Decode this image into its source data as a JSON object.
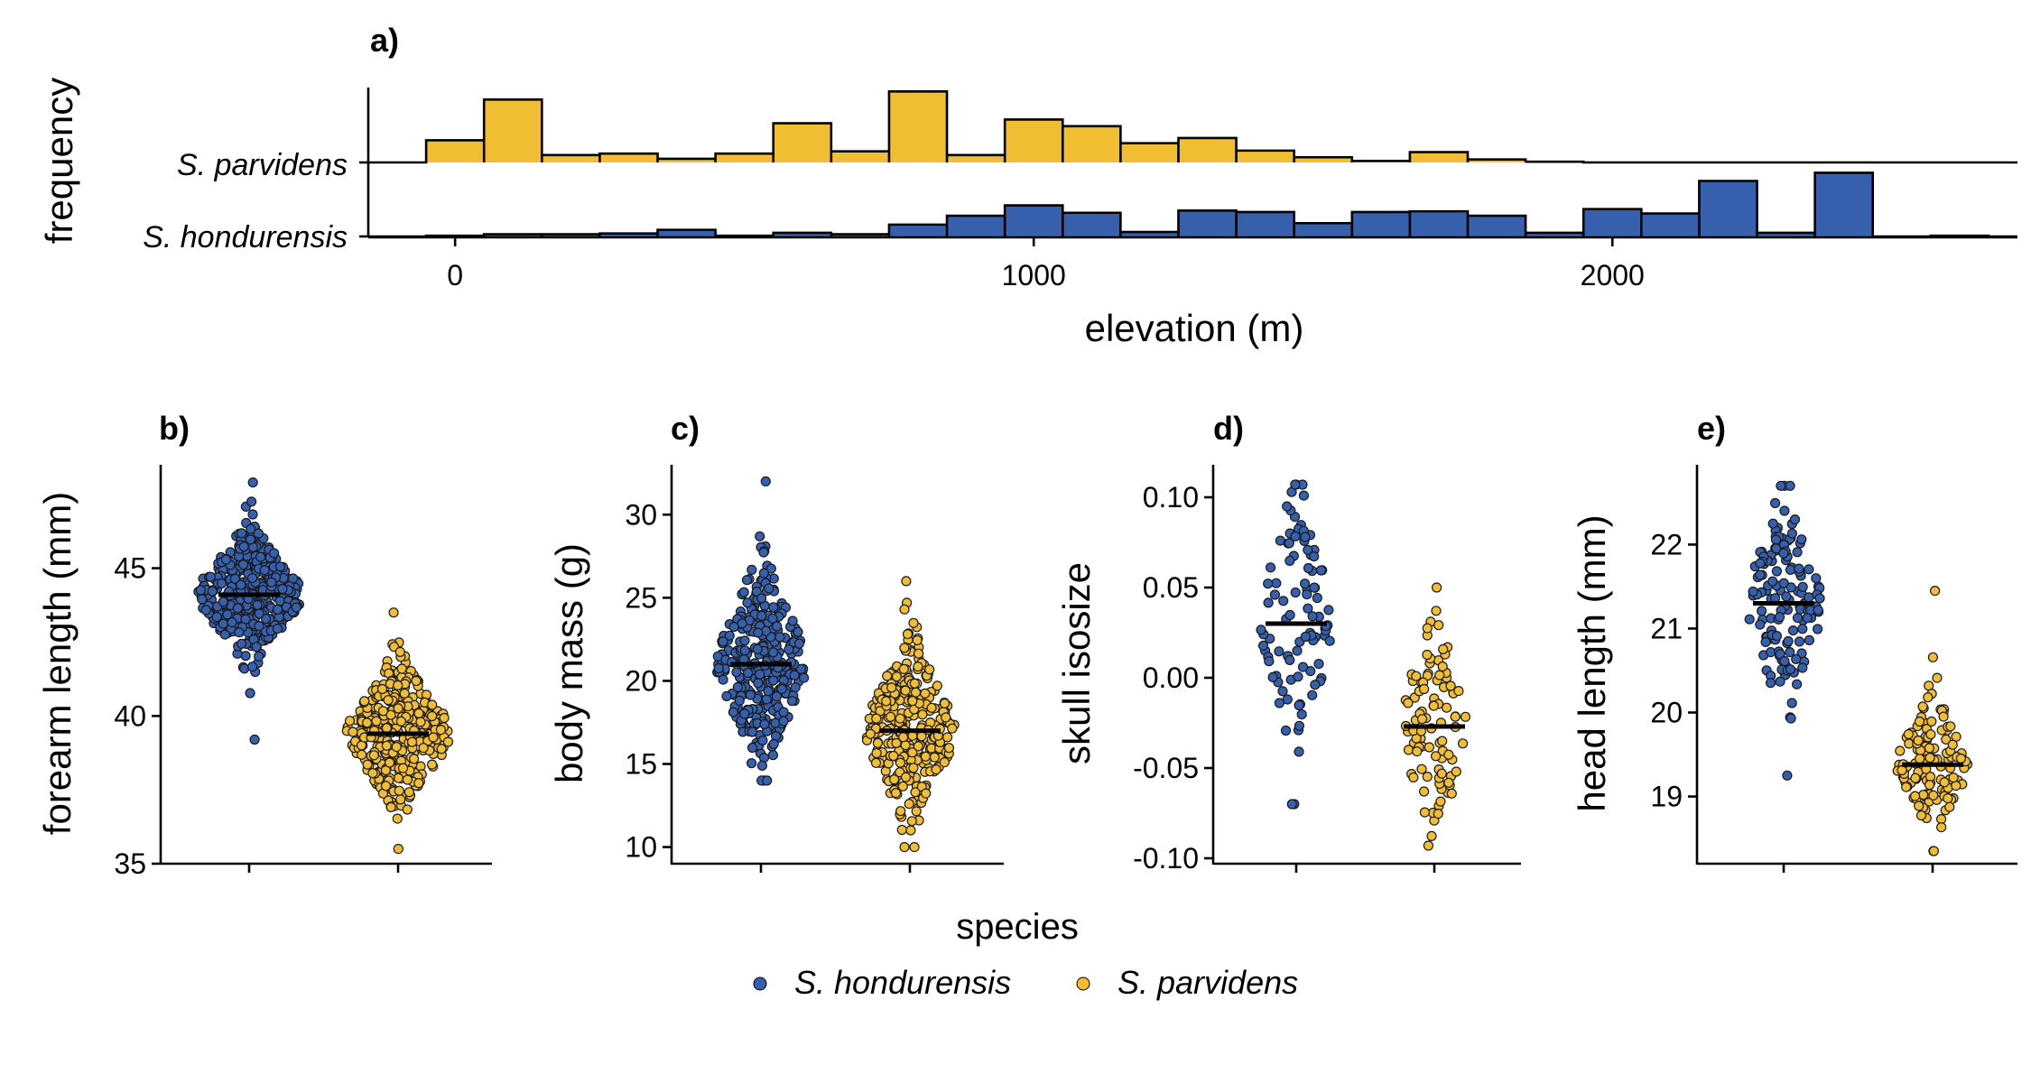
{
  "colors": {
    "hondurensis": "#3660ad",
    "parvidens": "#f0bd33",
    "axis": "#000000"
  },
  "chart_data": [
    {
      "id": "a",
      "type": "histogram",
      "panel_label": "a)",
      "xlabel": "elevation (m)",
      "ylabel": "frequency",
      "xlim": [
        -150,
        2700
      ],
      "xticks": [
        0,
        1000,
        2000
      ],
      "categories": [
        "S. parvidens",
        "S. hondurensis"
      ],
      "bin_width": 100,
      "bin_starts": [
        -50,
        50,
        150,
        250,
        350,
        450,
        550,
        650,
        750,
        850,
        950,
        1050,
        1150,
        1250,
        1350,
        1450,
        1550,
        1650,
        1750,
        1850,
        1950,
        2050,
        2150,
        2250,
        2350,
        2450,
        2550
      ],
      "series": [
        {
          "name": "S. parvidens",
          "values": [
            0.3,
            0.85,
            0.1,
            0.12,
            0.05,
            0.12,
            0.53,
            0.15,
            0.96,
            0.1,
            0.58,
            0.49,
            0.26,
            0.33,
            0.16,
            0.07,
            0.02,
            0.14,
            0.04,
            0.01,
            0,
            0,
            0,
            0,
            0,
            0,
            0
          ]
        },
        {
          "name": "S. hondurensis",
          "values": [
            0.01,
            0.03,
            0.03,
            0.04,
            0.09,
            0.01,
            0.05,
            0.03,
            0.16,
            0.28,
            0.42,
            0.32,
            0.06,
            0.35,
            0.33,
            0.18,
            0.33,
            0.34,
            0.28,
            0.05,
            0.37,
            0.31,
            0.75,
            0.05,
            0.86,
            0,
            0.01
          ]
        }
      ]
    },
    {
      "id": "b",
      "type": "scatter",
      "panel_label": "b)",
      "ylabel": "forearm length (mm)",
      "ylim": [
        35,
        48.5
      ],
      "yticks": [
        35,
        40,
        45
      ],
      "categories": [
        "S. hondurensis",
        "S. parvidens"
      ],
      "series": [
        {
          "name": "S. hondurensis",
          "n": 380,
          "median": 44.1,
          "min": 39.2,
          "max": 47.9,
          "sd": 1.05
        },
        {
          "name": "S. parvidens",
          "n": 360,
          "median": 39.4,
          "min": 35.5,
          "max": 43.5,
          "sd": 1.15
        }
      ]
    },
    {
      "id": "c",
      "type": "scatter",
      "panel_label": "c)",
      "ylabel": "body mass (g)",
      "ylim": [
        9,
        33
      ],
      "yticks": [
        10,
        15,
        20,
        25,
        30
      ],
      "categories": [
        "S. hondurensis",
        "S. parvidens"
      ],
      "series": [
        {
          "name": "S. hondurensis",
          "n": 330,
          "median": 21,
          "min": 14,
          "max": 32,
          "sd": 2.9
        },
        {
          "name": "S. parvidens",
          "n": 320,
          "median": 17,
          "min": 10,
          "max": 26,
          "sd": 2.6
        }
      ]
    },
    {
      "id": "d",
      "type": "scatter",
      "panel_label": "d)",
      "ylabel": "skull isosize",
      "ylim": [
        -0.103,
        0.118
      ],
      "yticks": [
        -0.1,
        -0.05,
        0,
        0.05,
        0.1
      ],
      "ytick_labels": [
        "-0.10",
        "-0.05",
        "0.00",
        "0.05",
        "0.10"
      ],
      "categories": [
        "S. hondurensis",
        "S. parvidens"
      ],
      "series": [
        {
          "name": "S. hondurensis",
          "n": 95,
          "median": 0.03,
          "min": -0.07,
          "max": 0.107,
          "sd": 0.035
        },
        {
          "name": "S. parvidens",
          "n": 95,
          "median": -0.027,
          "min": -0.093,
          "max": 0.05,
          "sd": 0.03
        }
      ]
    },
    {
      "id": "e",
      "type": "scatter",
      "panel_label": "e)",
      "ylabel": "head length (mm)",
      "ylim": [
        18.2,
        22.95
      ],
      "yticks": [
        19,
        20,
        21,
        22
      ],
      "categories": [
        "S. hondurensis",
        "S. parvidens"
      ],
      "series": [
        {
          "name": "S. hondurensis",
          "n": 140,
          "median": 21.3,
          "min": 19.25,
          "max": 22.7,
          "sd": 0.62
        },
        {
          "name": "S. parvidens",
          "n": 130,
          "median": 19.38,
          "min": 18.35,
          "max": 21.45,
          "sd": 0.38
        }
      ]
    }
  ],
  "legend": {
    "title": "species",
    "items": [
      {
        "label": "S. hondurensis",
        "key": "hondurensis"
      },
      {
        "label": "S. parvidens",
        "key": "parvidens"
      }
    ]
  }
}
